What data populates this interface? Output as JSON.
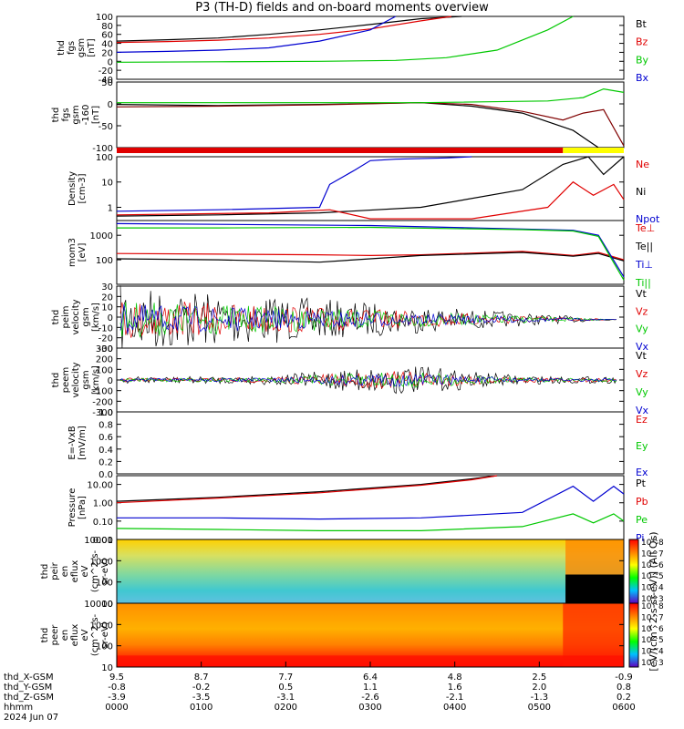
{
  "title": "P3 (TH-D) fields and on-board moments overview",
  "date": "2024 Jun 07",
  "colors": {
    "black": "#000000",
    "red": "#e00000",
    "green": "#00c800",
    "blue": "#0000d0",
    "yellow": "#ffff00",
    "maroon": "#800000"
  },
  "chart_data": [
    {
      "type": "line",
      "id": "fgs",
      "ylabel": [
        "thd",
        "fgs",
        "gsm",
        "[nT]"
      ],
      "ylim": [
        -40,
        100
      ],
      "yticks": [
        "100",
        "80",
        "60",
        "40",
        "20",
        "0",
        "-20",
        "-40"
      ],
      "legend": [
        {
          "label": "Bt",
          "color": "#000000"
        },
        {
          "label": "Bz",
          "color": "#e00000"
        },
        {
          "label": "By",
          "color": "#00c800"
        },
        {
          "label": "Bx",
          "color": "#0000d0"
        }
      ],
      "series": [
        {
          "name": "Bt",
          "color": "#000000",
          "x": [
            0,
            0.1,
            0.2,
            0.3,
            0.4,
            0.5,
            0.6,
            0.68
          ],
          "values": [
            45,
            48,
            52,
            60,
            70,
            82,
            95,
            100
          ]
        },
        {
          "name": "Bz",
          "color": "#e00000",
          "x": [
            0,
            0.1,
            0.2,
            0.3,
            0.4,
            0.5,
            0.6,
            0.66
          ],
          "values": [
            42,
            44,
            47,
            52,
            60,
            72,
            90,
            100
          ]
        },
        {
          "name": "By",
          "color": "#00c800",
          "x": [
            0,
            0.2,
            0.4,
            0.55,
            0.65,
            0.75,
            0.85,
            0.9
          ],
          "values": [
            -2,
            -1,
            0,
            2,
            8,
            25,
            70,
            100
          ]
        },
        {
          "name": "Bx",
          "color": "#0000d0",
          "x": [
            0,
            0.1,
            0.2,
            0.3,
            0.4,
            0.5,
            0.55
          ],
          "values": [
            20,
            22,
            25,
            30,
            45,
            70,
            100
          ]
        }
      ]
    },
    {
      "type": "line",
      "id": "fgs-160",
      "ylabel": [
        "thd",
        "fgs",
        "gsm",
        "-160",
        "[nT]"
      ],
      "ylim": [
        -130,
        60
      ],
      "yticks": [
        "50",
        "0",
        "-50",
        "-100"
      ],
      "series": [
        {
          "name": "Bt",
          "color": "#000000",
          "x": [
            0,
            0.2,
            0.4,
            0.6,
            0.7,
            0.8,
            0.9,
            0.95,
            1
          ],
          "values": [
            -5,
            -8,
            -5,
            0,
            -10,
            -30,
            -80,
            -130,
            -130
          ]
        },
        {
          "name": "Bx",
          "color": "#800000",
          "x": [
            0,
            0.2,
            0.4,
            0.6,
            0.7,
            0.8,
            0.88,
            0.92,
            0.96,
            1
          ],
          "values": [
            -12,
            -10,
            -6,
            0,
            -5,
            -25,
            -50,
            -30,
            -20,
            -125
          ]
        },
        {
          "name": "By",
          "color": "#00c800",
          "x": [
            0,
            0.3,
            0.6,
            0.85,
            0.92,
            0.96,
            1
          ],
          "values": [
            0,
            0,
            0,
            5,
            15,
            40,
            30
          ]
        }
      ]
    },
    {
      "type": "line",
      "id": "density",
      "ylabel": [
        "Density",
        "[cm-3]"
      ],
      "yscale": "log",
      "ylim": [
        0.3,
        100
      ],
      "yticks": [
        "100",
        "10",
        "1"
      ],
      "legend": [
        {
          "label": "Ne",
          "color": "#e00000"
        },
        {
          "label": "Ni",
          "color": "#000000"
        },
        {
          "label": "Npot",
          "color": "#0000d0"
        }
      ],
      "series": [
        {
          "name": "Ni",
          "color": "#000000",
          "x": [
            0,
            0.2,
            0.4,
            0.6,
            0.8,
            0.88,
            0.93,
            0.96,
            1
          ],
          "values": [
            0.45,
            0.5,
            0.6,
            1.0,
            5,
            50,
            100,
            20,
            100
          ]
        },
        {
          "name": "Ne",
          "color": "#e00000",
          "x": [
            0,
            0.3,
            0.42,
            0.5,
            0.7,
            0.85,
            0.9,
            0.94,
            0.98,
            1
          ],
          "values": [
            0.5,
            0.6,
            0.8,
            0.35,
            0.35,
            1.0,
            10,
            3,
            8,
            2
          ]
        },
        {
          "name": "Npot",
          "color": "#0000d0",
          "x": [
            0,
            0.2,
            0.4,
            0.42,
            0.47,
            0.5,
            0.55,
            0.65,
            0.7
          ],
          "values": [
            0.7,
            0.8,
            1.0,
            8,
            30,
            70,
            80,
            90,
            100
          ]
        }
      ]
    },
    {
      "type": "line",
      "id": "moments-temp",
      "ylabel": [
        "mom3",
        "[eV]"
      ],
      "yscale": "log",
      "ylim": [
        10,
        4000
      ],
      "yticks": [
        "1000",
        "100"
      ],
      "legend": [
        {
          "label": "Te⊥",
          "color": "#e00000"
        },
        {
          "label": "Te||",
          "color": "#000000"
        },
        {
          "label": "Ti⊥",
          "color": "#0000d0"
        },
        {
          "label": "Ti||",
          "color": "#00c800"
        }
      ],
      "series": [
        {
          "name": "Te⊥",
          "color": "#e00000",
          "x": [
            0,
            0.2,
            0.4,
            0.5,
            0.6,
            0.8,
            0.9,
            0.95,
            1
          ],
          "values": [
            180,
            170,
            160,
            150,
            160,
            220,
            150,
            200,
            100
          ]
        },
        {
          "name": "Te||",
          "color": "#000000",
          "x": [
            0,
            0.2,
            0.4,
            0.5,
            0.6,
            0.8,
            0.9,
            0.95,
            1
          ],
          "values": [
            110,
            100,
            80,
            110,
            150,
            200,
            140,
            180,
            90
          ]
        },
        {
          "name": "Ti⊥",
          "color": "#0000d0",
          "x": [
            0,
            0.2,
            0.5,
            0.8,
            0.9,
            0.95,
            1
          ],
          "values": [
            3000,
            2800,
            2500,
            1800,
            1600,
            1000,
            20
          ]
        },
        {
          "name": "Ti||",
          "color": "#00c800",
          "x": [
            0,
            0.2,
            0.5,
            0.8,
            0.9,
            0.95,
            1
          ],
          "values": [
            2000,
            2000,
            2100,
            1700,
            1500,
            900,
            15
          ]
        }
      ]
    },
    {
      "type": "line",
      "id": "peim-velocity",
      "ylabel": [
        "thd",
        "peim",
        "velocity",
        "gsm",
        "[km/s]"
      ],
      "ylim": [
        -30,
        35
      ],
      "yticks": [
        "30",
        "20",
        "10",
        "0",
        "-10",
        "-20",
        "-30"
      ],
      "legend": [
        {
          "label": "Vt",
          "color": "#000000"
        },
        {
          "label": "Vz",
          "color": "#e00000"
        },
        {
          "label": "Vy",
          "color": "#00c800"
        },
        {
          "label": "Vx",
          "color": "#0000d0"
        }
      ]
    },
    {
      "type": "line",
      "id": "peem-velocity",
      "ylabel": [
        "thd",
        "peem",
        "velocity",
        "gsm",
        "[km/s]"
      ],
      "ylim": [
        -300,
        300
      ],
      "yticks": [
        "300",
        "200",
        "100",
        "0",
        "-100",
        "-200",
        "-300"
      ],
      "legend": [
        {
          "label": "Vt",
          "color": "#000000"
        },
        {
          "label": "Vz",
          "color": "#e00000"
        },
        {
          "label": "Vy",
          "color": "#00c800"
        },
        {
          "label": "Vx",
          "color": "#0000d0"
        }
      ]
    },
    {
      "type": "line",
      "id": "e-field",
      "ylabel": [
        "E=-VxB",
        "[mV/m]"
      ],
      "ylim": [
        0,
        1
      ],
      "yticks": [
        "1.0",
        "0.8",
        "0.6",
        "0.4",
        "0.2",
        "0.0"
      ],
      "legend": [
        {
          "label": "Ez",
          "color": "#e00000"
        },
        {
          "label": "Ey",
          "color": "#00c800"
        },
        {
          "label": "Ex",
          "color": "#0000d0"
        }
      ],
      "series": []
    },
    {
      "type": "line",
      "id": "pressure",
      "ylabel": [
        "Pressure",
        "[nPa]"
      ],
      "yscale": "log",
      "ylim": [
        0.01,
        30
      ],
      "yticks": [
        "10.00",
        "1.00",
        "0.10",
        "0.01"
      ],
      "legend": [
        {
          "label": "Pt",
          "color": "#000000"
        },
        {
          "label": "Pb",
          "color": "#e00000"
        },
        {
          "label": "Pe",
          "color": "#00c800"
        },
        {
          "label": "Pi",
          "color": "#0000d0"
        }
      ],
      "series": [
        {
          "name": "Pt",
          "color": "#000000",
          "x": [
            0,
            0.2,
            0.4,
            0.6,
            0.7,
            0.75
          ],
          "values": [
            1.2,
            2,
            4,
            10,
            20,
            30
          ]
        },
        {
          "name": "Pb",
          "color": "#e00000",
          "x": [
            0,
            0.2,
            0.4,
            0.6,
            0.7,
            0.75
          ],
          "values": [
            1.0,
            1.8,
            3.5,
            9,
            18,
            30
          ]
        },
        {
          "name": "Pi",
          "color": "#0000d0",
          "x": [
            0,
            0.2,
            0.4,
            0.6,
            0.8,
            0.9,
            0.94,
            0.98,
            1
          ],
          "values": [
            0.15,
            0.15,
            0.13,
            0.15,
            0.3,
            8,
            1.2,
            8,
            3
          ]
        },
        {
          "name": "Pe",
          "color": "#00c800",
          "x": [
            0,
            0.2,
            0.4,
            0.6,
            0.8,
            0.9,
            0.94,
            0.98,
            1
          ],
          "values": [
            0.04,
            0.035,
            0.03,
            0.03,
            0.05,
            0.25,
            0.08,
            0.25,
            0.1
          ]
        }
      ]
    },
    {
      "type": "heatmap",
      "id": "peir-en-eflux",
      "ylabel": [
        "thd",
        "peir",
        "en",
        "eflux",
        "eV",
        "(cm^2-s-",
        "sr-eV)"
      ],
      "yscale": "log",
      "ylim": [
        5,
        20000
      ],
      "yticks": [
        "10000",
        "1000",
        "100",
        "10"
      ],
      "colorbar": {
        "ticks": [
          "10^8",
          "10^7",
          "10^6",
          "10^5",
          "10^4",
          "10^3"
        ]
      }
    },
    {
      "type": "heatmap",
      "id": "peer-en-eflux",
      "ylabel": [
        "thd",
        "peer",
        "en",
        "eflux",
        "eV",
        "(cm^2-s-",
        "sr-eV)"
      ],
      "yscale": "log",
      "ylim": [
        5,
        20000
      ],
      "yticks": [
        "10000",
        "1000",
        "100",
        "10"
      ],
      "colorbar": {
        "ticks": [
          "10^8",
          "10^7",
          "10^6",
          "10^5",
          "10^4",
          "10^3"
        ]
      },
      "colorbar_label": "[eV/(cm^2-s-sr-eV)] (All Qs)"
    }
  ],
  "xaxis": {
    "rows": [
      {
        "label": "thd_X-GSM",
        "values": [
          "9.5",
          "8.7",
          "7.7",
          "6.4",
          "4.8",
          "2.5",
          "-0.9"
        ]
      },
      {
        "label": "thd_Y-GSM",
        "values": [
          "-0.8",
          "-0.2",
          "0.5",
          "1.1",
          "1.6",
          "2.0",
          "0.8"
        ]
      },
      {
        "label": "thd_Z-GSM",
        "values": [
          "-3.9",
          "-3.5",
          "-3.1",
          "-2.6",
          "-2.1",
          "-1.3",
          "0.2"
        ]
      },
      {
        "label": "hhmm",
        "values": [
          "0000",
          "0100",
          "0200",
          "0300",
          "0400",
          "0500",
          "0600"
        ]
      }
    ]
  }
}
